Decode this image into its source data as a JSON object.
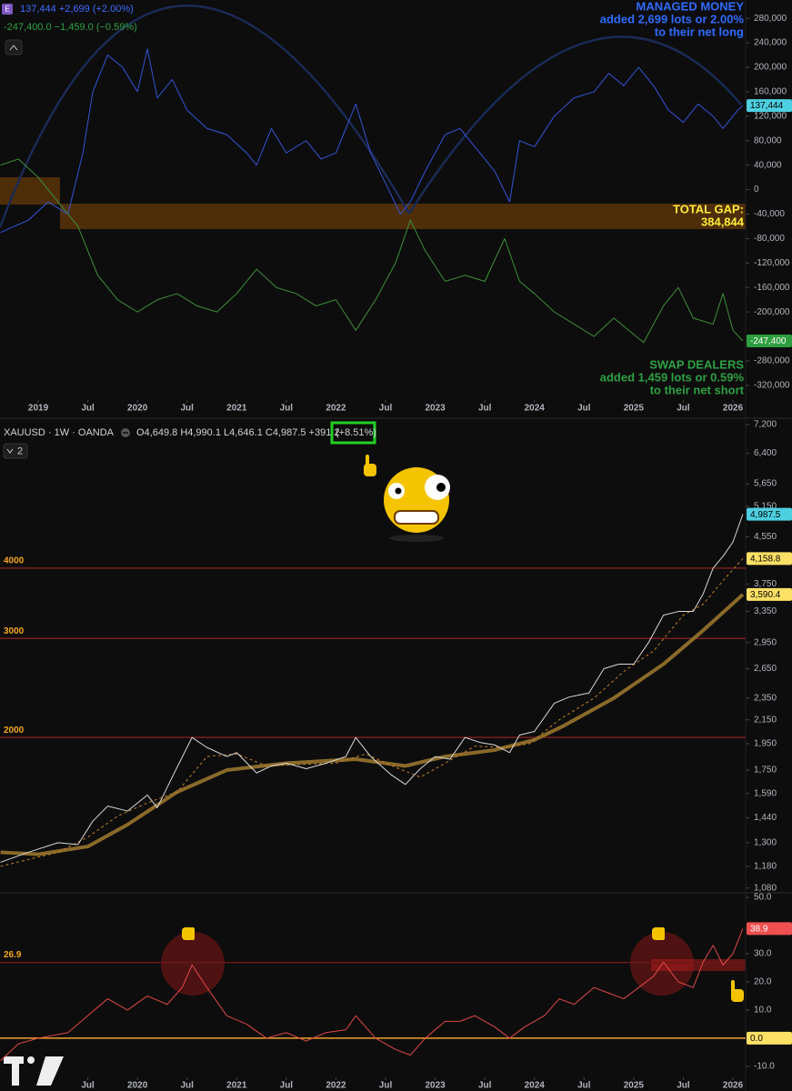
{
  "chart_data": [
    {
      "type": "line",
      "icon": "E",
      "header": [
        "137,444 +2,699 (+2.00%)",
        "-247,400.0 −1,459.0 (−0.59%)"
      ],
      "header_colors": [
        "#3d6bff",
        "#2ea043"
      ],
      "xlim": [
        2018.615,
        2026.128
      ],
      "xticks": [
        {
          "value": 2019,
          "label": "2019"
        },
        {
          "value": 2019.5,
          "label": "Jul"
        },
        {
          "value": 2020,
          "label": "2020"
        },
        {
          "value": 2020.5,
          "label": "Jul"
        },
        {
          "value": 2021,
          "label": "2021"
        },
        {
          "value": 2021.5,
          "label": "Jul"
        },
        {
          "value": 2022,
          "label": "2022"
        },
        {
          "value": 2022.5,
          "label": "Jul"
        },
        {
          "value": 2023,
          "label": "2023"
        },
        {
          "value": 2023.5,
          "label": "Jul"
        },
        {
          "value": 2024,
          "label": "2024"
        },
        {
          "value": 2024.5,
          "label": "Jul"
        },
        {
          "value": 2025,
          "label": "2025"
        },
        {
          "value": 2025.5,
          "label": "Jul"
        },
        {
          "value": 2026,
          "label": "2026"
        }
      ],
      "ylim": [
        -344000,
        310000
      ],
      "yticks": [
        {
          "value": 280000,
          "label": "280,000"
        },
        {
          "value": 240000,
          "label": "240,000"
        },
        {
          "value": 200000,
          "label": "200,000"
        },
        {
          "value": 160000,
          "label": "160,000"
        },
        {
          "value": 120000,
          "label": "120,000"
        },
        {
          "value": 80000,
          "label": "80,000"
        },
        {
          "value": 40000,
          "label": "40,000"
        },
        0,
        {
          "value": -40000,
          "label": "-40,000"
        },
        {
          "value": -80000,
          "label": "-80,000"
        },
        {
          "value": -120000,
          "label": "-120,000"
        },
        {
          "value": -160000,
          "label": "-160,000"
        },
        {
          "value": -200000,
          "label": "-200,000"
        },
        {
          "value": -280000,
          "label": "-280,000"
        },
        {
          "value": -320000,
          "label": "-320,000"
        }
      ],
      "series": [
        {
          "color": "#3553d6",
          "style": "solid",
          "x": [
            2018.62,
            2018.9,
            2019.1,
            2019.3,
            2019.45,
            2019.55,
            2019.7,
            2019.85,
            2020.0,
            2020.1,
            2020.2,
            2020.35,
            2020.5,
            2020.7,
            2020.9,
            2021.1,
            2021.2,
            2021.35,
            2021.5,
            2021.7,
            2021.85,
            2022.0,
            2022.2,
            2022.35,
            2022.5,
            2022.65,
            2022.75,
            2022.9,
            2023.1,
            2023.25,
            2023.45,
            2023.6,
            2023.75,
            2023.85,
            2024.0,
            2024.2,
            2024.4,
            2024.6,
            2024.75,
            2024.9,
            2025.05,
            2025.2,
            2025.35,
            2025.5,
            2025.65,
            2025.8,
            2025.9,
            2026.05,
            2026.1
          ],
          "values": [
            -70000,
            -50000,
            -20000,
            -40000,
            60000,
            160000,
            220000,
            200000,
            160000,
            230000,
            150000,
            180000,
            130000,
            100000,
            90000,
            60000,
            40000,
            100000,
            60000,
            80000,
            50000,
            60000,
            140000,
            60000,
            10000,
            -40000,
            -20000,
            30000,
            90000,
            100000,
            60000,
            30000,
            -20000,
            80000,
            70000,
            120000,
            150000,
            160000,
            190000,
            170000,
            200000,
            170000,
            130000,
            110000,
            140000,
            120000,
            100000,
            130000,
            137444
          ]
        },
        {
          "color": "#3f8f3a",
          "style": "solid",
          "x": [
            2018.62,
            2018.8,
            2019.0,
            2019.2,
            2019.4,
            2019.6,
            2019.8,
            2020.0,
            2020.2,
            2020.4,
            2020.6,
            2020.8,
            2021.0,
            2021.2,
            2021.4,
            2021.6,
            2021.8,
            2022.0,
            2022.2,
            2022.4,
            2022.6,
            2022.75,
            2022.9,
            2023.1,
            2023.3,
            2023.5,
            2023.7,
            2023.85,
            2024.0,
            2024.2,
            2024.4,
            2024.6,
            2024.8,
            2024.95,
            2025.1,
            2025.3,
            2025.45,
            2025.6,
            2025.8,
            2025.9,
            2026.0,
            2026.1
          ],
          "values": [
            40000,
            50000,
            20000,
            -20000,
            -60000,
            -140000,
            -180000,
            -200000,
            -180000,
            -170000,
            -190000,
            -200000,
            -170000,
            -130000,
            -160000,
            -170000,
            -190000,
            -180000,
            -230000,
            -180000,
            -120000,
            -50000,
            -100000,
            -150000,
            -140000,
            -150000,
            -80000,
            -150000,
            -170000,
            -200000,
            -220000,
            -240000,
            -210000,
            -230000,
            -250000,
            -190000,
            -160000,
            -210000,
            -220000,
            -170000,
            -230000,
            -247400
          ]
        }
      ],
      "price_labels": [
        {
          "value": 137444,
          "label": "137,444",
          "color": "#4dd0e1"
        },
        {
          "value": -247400,
          "label": "-247,400",
          "color": "#2e9e3e"
        }
      ],
      "annotations": [
        {
          "lines": [
            "MANAGED MONEY",
            "added 2,699 lots or 2.00%",
            "to their net long"
          ],
          "color": "#2f6bff"
        },
        {
          "lines": [
            "TOTAL GAP:",
            "384,844"
          ],
          "color": "#ffeb3b"
        },
        {
          "lines": [
            "SWAP DEALERS",
            "added 1,459 lots or 0.59%",
            "to their net short"
          ],
          "color": "#2ea043"
        }
      ]
    },
    {
      "type": "line",
      "title": "XAUUSD · 1W · OANDA",
      "ohlc": "O4,649.8 H4,990.1 L4,646.1 C4,987.5 +391.2",
      "change": "(+8.51%)",
      "pane_button": "2",
      "log": true,
      "xlim": [
        2018.615,
        2026.128
      ],
      "ylim": [
        1059,
        7334
      ],
      "yticks": [
        {
          "value": 7200,
          "label": "7,200"
        },
        {
          "value": 6400,
          "label": "6,400"
        },
        {
          "value": 5650,
          "label": "5,650"
        },
        {
          "value": 5150,
          "label": "5,150"
        },
        {
          "value": 4550,
          "label": "4,550"
        },
        {
          "value": 3750,
          "label": "3,750"
        },
        {
          "value": 3350,
          "label": "3,350"
        },
        {
          "value": 2950,
          "label": "2,950"
        },
        {
          "value": 2650,
          "label": "2,650"
        },
        {
          "value": 2350,
          "label": "2,350"
        },
        {
          "value": 2150,
          "label": "2,150"
        },
        {
          "value": 1950,
          "label": "1,950"
        },
        {
          "value": 1750,
          "label": "1,750"
        },
        {
          "value": 1590,
          "label": "1,590"
        },
        {
          "value": 1440,
          "label": "1,440"
        },
        {
          "value": 1300,
          "label": "1,300"
        },
        {
          "value": 1180,
          "label": "1,180"
        },
        {
          "value": 1080,
          "label": "1,080"
        }
      ],
      "levels": [
        {
          "value": 4000,
          "label": "4000",
          "color": "#7a1f1f"
        },
        {
          "value": 3000,
          "label": "3000",
          "color": "#7a1f1f"
        },
        {
          "value": 2000,
          "label": "2000",
          "color": "#7a1f1f"
        }
      ],
      "level_label_color": "#f5a623",
      "series": [
        {
          "color": "#8a6a2a",
          "style": "thick",
          "x": [
            2018.62,
            2019.0,
            2019.5,
            2019.9,
            2020.4,
            2020.9,
            2021.5,
            2022.2,
            2022.7,
            2023.1,
            2023.6,
            2024.0,
            2024.3,
            2024.8,
            2025.3,
            2025.7,
            2026.1
          ],
          "values": [
            1250,
            1240,
            1280,
            1400,
            1600,
            1750,
            1800,
            1830,
            1780,
            1850,
            1900,
            1980,
            2100,
            2350,
            2700,
            3100,
            3590.4
          ]
        },
        {
          "color": "#c0802a",
          "style": "dashed",
          "x": [
            2018.62,
            2019.2,
            2019.5,
            2019.8,
            2020.1,
            2020.4,
            2020.7,
            2021.0,
            2021.3,
            2021.6,
            2022.0,
            2022.3,
            2022.6,
            2022.85,
            2023.1,
            2023.4,
            2023.7,
            2023.95,
            2024.25,
            2024.6,
            2024.9,
            2025.2,
            2025.5,
            2025.7,
            2025.9,
            2026.1
          ],
          "values": [
            1180,
            1250,
            1330,
            1450,
            1530,
            1600,
            1850,
            1870,
            1780,
            1790,
            1800,
            1870,
            1770,
            1700,
            1800,
            1930,
            1920,
            1950,
            2150,
            2350,
            2620,
            2850,
            3300,
            3450,
            3800,
            4158.8
          ]
        },
        {
          "color": "#d8d8d8",
          "style": "solid",
          "x": [
            2018.62,
            2018.9,
            2019.2,
            2019.4,
            2019.55,
            2019.7,
            2019.9,
            2020.1,
            2020.2,
            2020.35,
            2020.55,
            2020.7,
            2020.9,
            2021.0,
            2021.2,
            2021.35,
            2021.5,
            2021.7,
            2021.9,
            2022.1,
            2022.2,
            2022.35,
            2022.55,
            2022.7,
            2022.85,
            2023.0,
            2023.15,
            2023.3,
            2023.45,
            2023.6,
            2023.75,
            2023.85,
            2024.0,
            2024.2,
            2024.35,
            2024.55,
            2024.7,
            2024.85,
            2025.0,
            2025.15,
            2025.3,
            2025.45,
            2025.6,
            2025.7,
            2025.8,
            2025.9,
            2026.0,
            2026.1
          ],
          "values": [
            1200,
            1250,
            1300,
            1290,
            1420,
            1510,
            1480,
            1580,
            1500,
            1700,
            2000,
            1920,
            1850,
            1880,
            1730,
            1780,
            1800,
            1760,
            1800,
            1850,
            2000,
            1850,
            1720,
            1650,
            1760,
            1850,
            1830,
            2000,
            1960,
            1940,
            1880,
            2020,
            2050,
            2300,
            2360,
            2400,
            2650,
            2700,
            2700,
            2950,
            3300,
            3350,
            3350,
            3600,
            4000,
            4200,
            4450,
            4987.5
          ]
        }
      ],
      "price_labels": [
        {
          "value": 4987.5,
          "label": "4,987.5",
          "color": "#4dd0e1"
        },
        {
          "value": 4158.8,
          "label": "4,158.8",
          "color": "#ffe066"
        },
        {
          "value": 3590.4,
          "label": "3,590.4",
          "color": "#ffe066"
        }
      ]
    },
    {
      "type": "line",
      "xlim": [
        2018.615,
        2026.128
      ],
      "xticks": [
        {
          "value": 2019.5,
          "label": "Jul"
        },
        {
          "value": 2020,
          "label": "2020"
        },
        {
          "value": 2020.5,
          "label": "Jul"
        },
        {
          "value": 2021,
          "label": "2021"
        },
        {
          "value": 2021.5,
          "label": "Jul"
        },
        {
          "value": 2022,
          "label": "2022"
        },
        {
          "value": 2022.5,
          "label": "Jul"
        },
        {
          "value": 2023,
          "label": "2023"
        },
        {
          "value": 2023.5,
          "label": "Jul"
        },
        {
          "value": 2024,
          "label": "2024"
        },
        {
          "value": 2024.5,
          "label": "Jul"
        },
        {
          "value": 2025,
          "label": "2025"
        },
        {
          "value": 2025.5,
          "label": "Jul"
        },
        {
          "value": 2026,
          "label": "2026"
        }
      ],
      "ylim": [
        -13.9,
        51.3
      ],
      "yticks": [
        {
          "value": 50,
          "label": "50.0"
        },
        {
          "value": 30,
          "label": "30.0"
        },
        {
          "value": 20,
          "label": "20.0"
        },
        {
          "value": 10,
          "label": "10.0"
        },
        {
          "value": -10,
          "label": "-10.0"
        }
      ],
      "levels": [
        {
          "value": 26.9,
          "label": "26.9",
          "color": "#6b1818"
        },
        {
          "value": 0,
          "color": "#f0a030"
        }
      ],
      "level_label_color": "#f5a623",
      "series": [
        {
          "color": "#e04848",
          "style": "solid",
          "x": [
            2018.62,
            2018.8,
            2019.0,
            2019.3,
            2019.5,
            2019.7,
            2019.9,
            2020.1,
            2020.3,
            2020.45,
            2020.55,
            2020.7,
            2020.9,
            2021.1,
            2021.3,
            2021.5,
            2021.7,
            2021.9,
            2022.1,
            2022.2,
            2022.4,
            2022.6,
            2022.75,
            2022.9,
            2023.1,
            2023.25,
            2023.4,
            2023.6,
            2023.75,
            2023.9,
            2024.1,
            2024.25,
            2024.4,
            2024.6,
            2024.75,
            2024.9,
            2025.05,
            2025.2,
            2025.3,
            2025.45,
            2025.6,
            2025.7,
            2025.8,
            2025.9,
            2026.0,
            2026.1
          ],
          "values": [
            -8,
            -2,
            0,
            2,
            8,
            14,
            10,
            15,
            12,
            18,
            26,
            18,
            8,
            5,
            0,
            2,
            -1,
            2,
            3,
            8,
            0,
            -4,
            -6,
            0,
            6,
            6,
            8,
            4,
            0,
            4,
            8,
            14,
            12,
            18,
            16,
            14,
            18,
            22,
            27,
            20,
            18,
            27,
            33,
            26,
            30,
            38.9
          ]
        }
      ],
      "price_labels": [
        {
          "value": 38.9,
          "label": "38.9",
          "color": "#f05050"
        },
        {
          "value": 0,
          "label": "0.0",
          "color": "#ffe066"
        }
      ]
    }
  ]
}
